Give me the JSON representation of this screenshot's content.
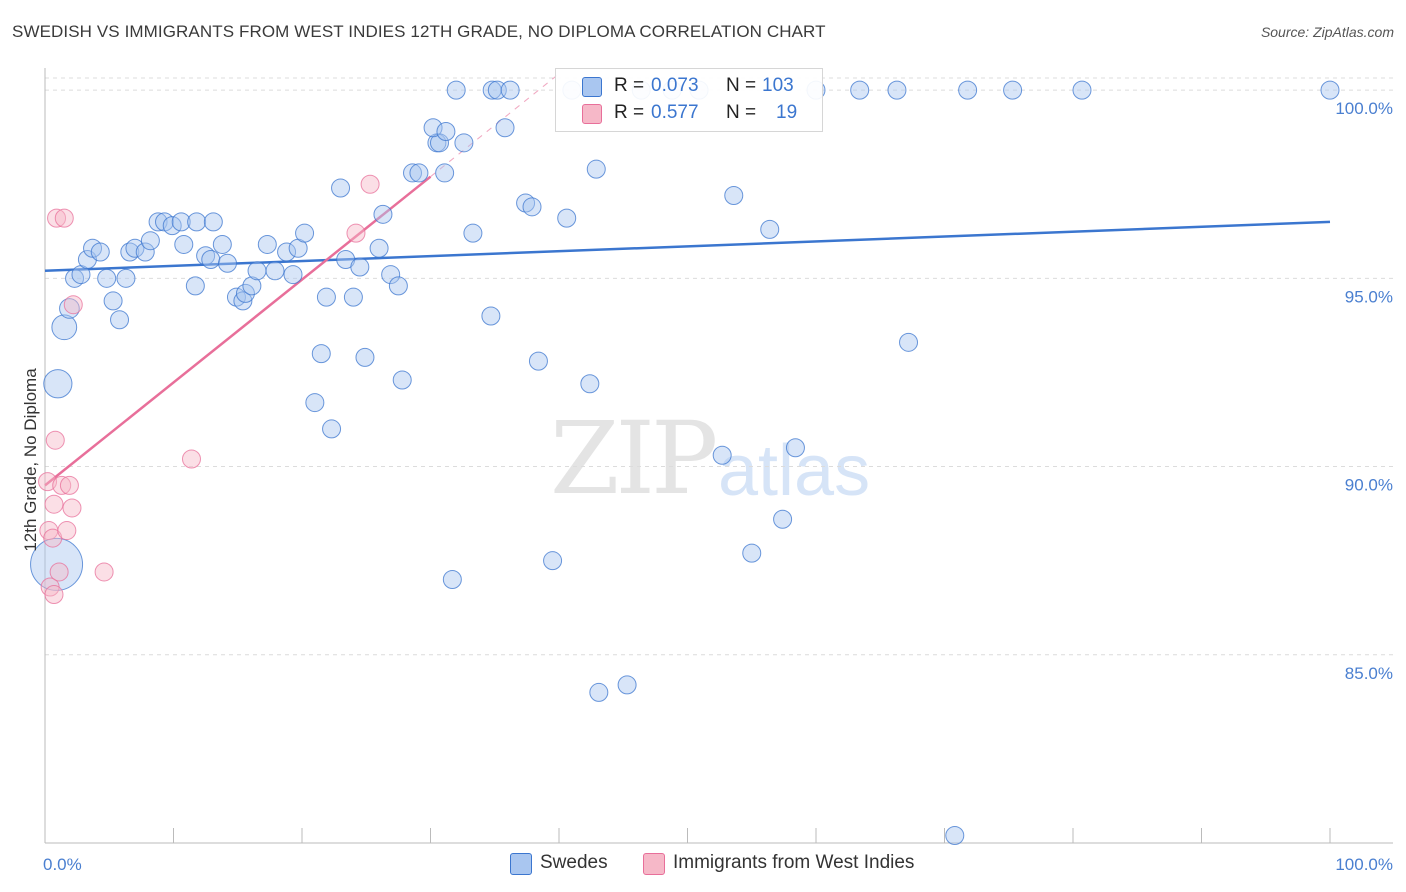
{
  "title": "SWEDISH VS IMMIGRANTS FROM WEST INDIES 12TH GRADE, NO DIPLOMA CORRELATION CHART",
  "source": "Source: ZipAtlas.com",
  "watermark": {
    "zip": "ZIP",
    "atlas": "atlas"
  },
  "legend_top": {
    "rows": [
      {
        "r_label": "R =",
        "r_value": "0.073",
        "n_label": "N =",
        "n_value": "103",
        "color": "#a9c6f0"
      },
      {
        "r_label": "R =",
        "r_value": "0.577",
        "n_label": "N =",
        "n_value": "19",
        "color": "#f6b8c8"
      }
    ]
  },
  "legend_bottom": [
    {
      "label": "Swedes",
      "color": "#a9c6f0"
    },
    {
      "label": "Immigrants from West Indies",
      "color": "#f6b8c8"
    }
  ],
  "colors": {
    "blue": "#3b76cf",
    "pink": "#e86f9a",
    "blue_fill": "#a9c6f0",
    "pink_fill": "#f6b8c8"
  },
  "chart_data": {
    "type": "scatter",
    "title": "SWEDISH VS IMMIGRANTS FROM WEST INDIES 12TH GRADE, NO DIPLOMA CORRELATION CHART",
    "xlabel": "",
    "ylabel": "12th Grade, No Diploma",
    "xlim": [
      0,
      100
    ],
    "ylim": [
      80.0,
      100.8
    ],
    "x_tick_labels": [
      "0.0%",
      "100.0%"
    ],
    "y_ticks": [
      85,
      90,
      95,
      100
    ],
    "y_tick_labels": [
      "85.0%",
      "90.0%",
      "95.0%",
      "100.0%"
    ],
    "grid": true,
    "series": [
      {
        "name": "Swedes",
        "color": "#3b76cf",
        "trend": {
          "x": [
            0,
            100
          ],
          "y": [
            95.2,
            96.5
          ]
        },
        "points": [
          [
            0.9,
            87.4,
            30
          ],
          [
            1.0,
            92.2,
            16
          ],
          [
            1.5,
            93.7,
            14
          ],
          [
            1.9,
            94.2,
            11
          ],
          [
            2.3,
            95.0,
            10
          ],
          [
            2.8,
            95.1,
            10
          ],
          [
            3.3,
            95.5,
            10
          ],
          [
            3.7,
            95.8,
            10
          ],
          [
            4.3,
            95.7,
            10
          ],
          [
            4.8,
            95.0,
            10
          ],
          [
            5.3,
            94.4,
            10
          ],
          [
            5.8,
            93.9,
            10
          ],
          [
            6.3,
            95.0,
            10
          ],
          [
            6.6,
            95.7,
            10
          ],
          [
            7.0,
            95.8,
            10
          ],
          [
            7.8,
            95.7,
            10
          ],
          [
            8.2,
            96.0,
            10
          ],
          [
            8.8,
            96.5,
            10
          ],
          [
            9.3,
            96.5,
            10
          ],
          [
            9.9,
            96.4,
            10
          ],
          [
            10.6,
            96.5,
            10
          ],
          [
            10.8,
            95.9,
            10
          ],
          [
            11.7,
            94.8,
            10
          ],
          [
            11.8,
            96.5,
            10
          ],
          [
            12.5,
            95.6,
            10
          ],
          [
            12.9,
            95.5,
            10
          ],
          [
            13.1,
            96.5,
            10
          ],
          [
            13.8,
            95.9,
            10
          ],
          [
            14.2,
            95.4,
            10
          ],
          [
            14.9,
            94.5,
            10
          ],
          [
            15.4,
            94.4,
            10
          ],
          [
            15.6,
            94.6,
            10
          ],
          [
            16.1,
            94.8,
            10
          ],
          [
            16.5,
            95.2,
            10
          ],
          [
            17.3,
            95.9,
            10
          ],
          [
            17.9,
            95.2,
            10
          ],
          [
            18.8,
            95.7,
            10
          ],
          [
            19.3,
            95.1,
            10
          ],
          [
            19.7,
            95.8,
            10
          ],
          [
            20.2,
            96.2,
            10
          ],
          [
            21.0,
            91.7,
            10
          ],
          [
            21.5,
            93.0,
            10
          ],
          [
            21.9,
            94.5,
            10
          ],
          [
            22.3,
            91.0,
            10
          ],
          [
            23.0,
            97.4,
            10
          ],
          [
            23.4,
            95.5,
            10
          ],
          [
            24.0,
            94.5,
            10
          ],
          [
            24.5,
            95.3,
            10
          ],
          [
            24.9,
            92.9,
            10
          ],
          [
            26.0,
            95.8,
            10
          ],
          [
            26.3,
            96.7,
            10
          ],
          [
            26.9,
            95.1,
            10
          ],
          [
            27.5,
            94.8,
            10
          ],
          [
            27.8,
            92.3,
            10
          ],
          [
            28.6,
            97.8,
            10
          ],
          [
            29.1,
            97.8,
            10
          ],
          [
            30.5,
            98.6,
            10
          ],
          [
            30.7,
            98.6,
            10
          ],
          [
            30.2,
            99.0,
            10
          ],
          [
            31.1,
            97.8,
            10
          ],
          [
            31.2,
            98.9,
            10
          ],
          [
            31.7,
            87.0,
            10
          ],
          [
            32.0,
            100.0,
            10
          ],
          [
            32.6,
            98.6,
            10
          ],
          [
            33.3,
            96.2,
            10
          ],
          [
            34.7,
            94.0,
            10
          ],
          [
            34.8,
            100.0,
            10
          ],
          [
            35.2,
            100.0,
            10
          ],
          [
            35.8,
            99.0,
            10
          ],
          [
            36.2,
            100.0,
            10
          ],
          [
            37.4,
            97.0,
            10
          ],
          [
            37.9,
            96.9,
            10
          ],
          [
            38.4,
            92.8,
            10
          ],
          [
            39.5,
            87.5,
            10
          ],
          [
            40.6,
            96.6,
            10
          ],
          [
            41.0,
            100.0,
            10
          ],
          [
            42.4,
            92.2,
            10
          ],
          [
            42.9,
            97.9,
            10
          ],
          [
            43.1,
            84.0,
            10
          ],
          [
            45.3,
            84.2,
            10
          ],
          [
            46.4,
            100.0,
            10
          ],
          [
            48.8,
            100.0,
            10
          ],
          [
            50.9,
            100.0,
            10
          ],
          [
            52.7,
            90.3,
            10
          ],
          [
            53.6,
            97.2,
            10
          ],
          [
            55.0,
            87.7,
            10
          ],
          [
            56.4,
            96.3,
            10
          ],
          [
            57.4,
            88.6,
            10
          ],
          [
            58.4,
            90.5,
            10
          ],
          [
            60.0,
            100.0,
            10
          ],
          [
            63.4,
            100.0,
            10
          ],
          [
            66.3,
            100.0,
            10
          ],
          [
            67.2,
            93.3,
            10
          ],
          [
            70.8,
            80.2,
            10
          ],
          [
            71.8,
            100.0,
            10
          ],
          [
            75.3,
            100.0,
            10
          ],
          [
            80.7,
            100.0,
            10
          ],
          [
            100.0,
            100.0,
            10
          ]
        ]
      },
      {
        "name": "Immigrants from West Indies",
        "color": "#e86f9a",
        "trend": {
          "x": [
            0,
            30.0
          ],
          "y": [
            89.5,
            97.7
          ]
        },
        "points": [
          [
            0.2,
            89.6,
            10
          ],
          [
            0.3,
            88.3,
            10
          ],
          [
            0.4,
            86.8,
            10
          ],
          [
            0.6,
            88.1,
            10
          ],
          [
            0.7,
            89.0,
            10
          ],
          [
            0.7,
            86.6,
            10
          ],
          [
            0.8,
            90.7,
            10
          ],
          [
            0.9,
            96.6,
            10
          ],
          [
            1.1,
            87.2,
            10
          ],
          [
            1.3,
            89.5,
            10
          ],
          [
            1.5,
            96.6,
            10
          ],
          [
            1.7,
            88.3,
            10
          ],
          [
            1.9,
            89.5,
            10
          ],
          [
            2.1,
            88.9,
            10
          ],
          [
            2.2,
            94.3,
            10
          ],
          [
            4.6,
            87.2,
            10
          ],
          [
            11.4,
            90.2,
            10
          ],
          [
            24.2,
            96.2,
            10
          ],
          [
            25.3,
            97.5,
            10
          ]
        ]
      }
    ]
  }
}
